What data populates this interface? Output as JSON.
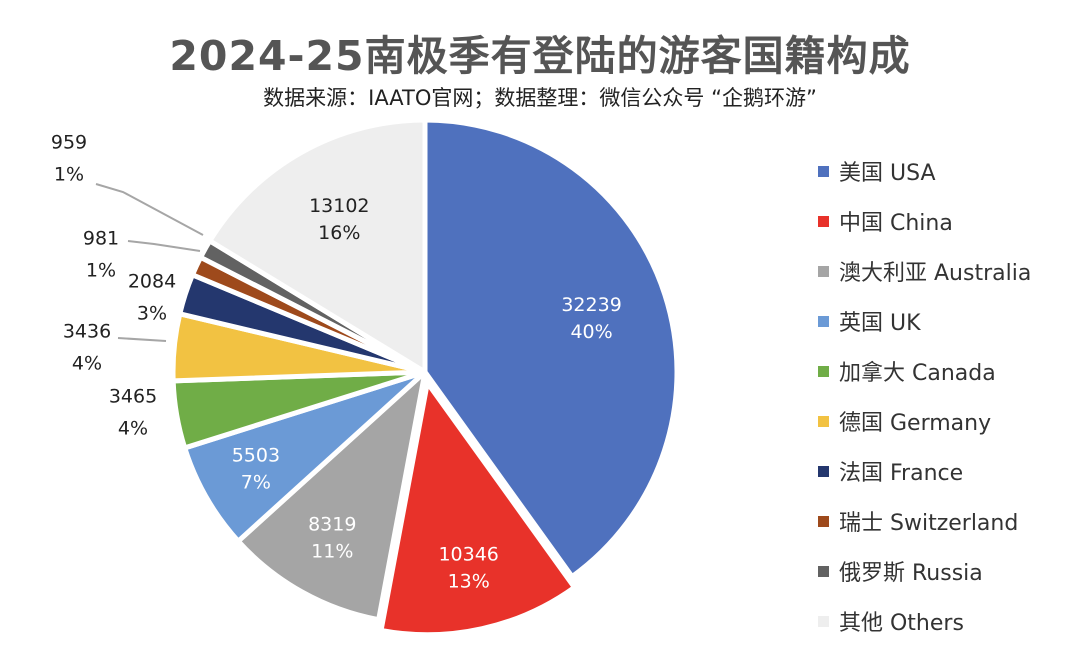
{
  "chart_data": {
    "type": "pie",
    "title": "2024-25南极季有登陆的游客国籍构成",
    "subtitle": "数据来源：IAATO官网；数据整理：微信公众号 “企鹅环游”",
    "legend_position": "right",
    "slices": [
      {
        "label": "美国 USA",
        "value": 32239,
        "percent_label": "40%",
        "color": "#4f71be"
      },
      {
        "label": "中国 China",
        "value": 10346,
        "percent_label": "13%",
        "color": "#e8322a"
      },
      {
        "label": "澳大利亚 Australia",
        "value": 8319,
        "percent_label": "11%",
        "color": "#a5a5a5"
      },
      {
        "label": "英国 UK",
        "value": 5503,
        "percent_label": "7%",
        "color": "#6b9ad6"
      },
      {
        "label": "加拿大 Canada",
        "value": 3465,
        "percent_label": "4%",
        "color": "#70ad47"
      },
      {
        "label": "德国 Germany",
        "value": 3436,
        "percent_label": "4%",
        "color": "#f2c242"
      },
      {
        "label": "法国 France",
        "value": 2084,
        "percent_label": "3%",
        "color": "#24376e"
      },
      {
        "label": "瑞士 Switzerland",
        "value": 981,
        "percent_label": "1%",
        "color": "#9e4a1c"
      },
      {
        "label": "俄罗斯 Russia",
        "value": 959,
        "percent_label": "1%",
        "color": "#626262"
      },
      {
        "label": "其他 Others",
        "value": 13102,
        "percent_label": "16%",
        "color": "#eeeeee"
      }
    ]
  }
}
